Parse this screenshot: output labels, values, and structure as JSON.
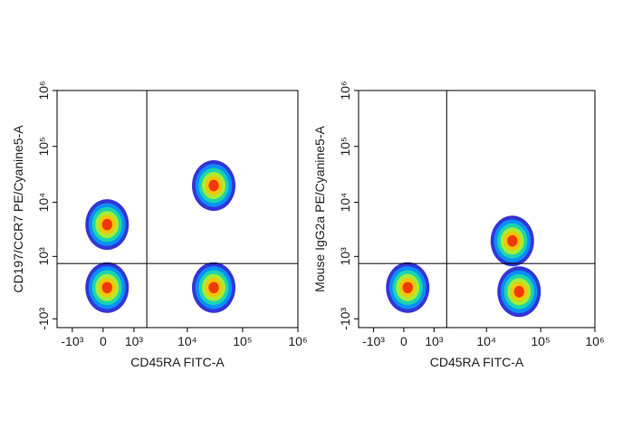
{
  "chart_data": [
    {
      "type": "scatter",
      "x_label": "CD45RA FITC-A",
      "y_label": "CD197/CCR7 PE/Cyanine5-A",
      "scale": "biexponential",
      "xlim": [
        -2000,
        1000000
      ],
      "ylim": [
        -1500,
        1000000
      ],
      "xticks": [
        {
          "value": -1000,
          "label": "-10³"
        },
        0,
        {
          "value": 1000,
          "label": "10³"
        },
        {
          "value": 10000,
          "label": "10⁴"
        },
        {
          "value": 100000,
          "label": "10⁵"
        },
        {
          "value": 1000000,
          "label": "10⁶"
        }
      ],
      "yticks": [
        {
          "value": -1000,
          "label": "-10³"
        },
        {
          "value": 1000,
          "label": "10³"
        },
        {
          "value": 10000,
          "label": "10⁴"
        },
        {
          "value": 100000,
          "label": "10⁵"
        },
        {
          "value": 1000000,
          "label": "10⁶"
        }
      ],
      "gates": {
        "x": 1800,
        "y": 700
      },
      "populations": {
        "x": [
          100,
          100,
          30000,
          30000
        ],
        "y": [
          0,
          4000,
          0,
          20000
        ]
      }
    },
    {
      "type": "scatter",
      "x_label": "CD45RA FITC-A",
      "y_label": "Mouse IgG2a PE/Cyanine5-A",
      "scale": "biexponential",
      "xlim": [
        -2000,
        1000000
      ],
      "ylim": [
        -1500,
        1000000
      ],
      "xticks": [
        {
          "value": -1000,
          "label": "-10³"
        },
        0,
        {
          "value": 1000,
          "label": "10³"
        },
        {
          "value": 10000,
          "label": "10⁴"
        },
        {
          "value": 100000,
          "label": "10⁵"
        },
        {
          "value": 1000000,
          "label": "10⁶"
        }
      ],
      "yticks": [
        {
          "value": -1000,
          "label": "-10³"
        },
        {
          "value": 1000,
          "label": "10³"
        },
        {
          "value": 10000,
          "label": "10⁴"
        },
        {
          "value": 100000,
          "label": "10⁵"
        },
        {
          "value": 1000000,
          "label": "10⁶"
        }
      ],
      "gates": {
        "x": 1800,
        "y": 700
      },
      "populations": {
        "x": [
          100,
          40000,
          30000
        ],
        "y": [
          0,
          -100,
          2000
        ]
      }
    }
  ]
}
